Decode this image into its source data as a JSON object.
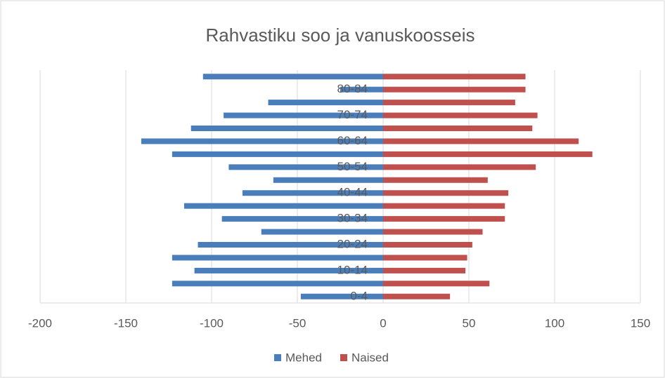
{
  "chart_data": {
    "type": "bar",
    "orientation": "horizontal",
    "title": "Rahvastiku soo ja vanuskoosseis",
    "categories": [
      "0-4",
      null,
      "10-14",
      null,
      "20-24",
      null,
      "30-34",
      null,
      "40-44",
      null,
      "50-54",
      null,
      "60-64",
      null,
      "70-74",
      null,
      "80-84",
      null
    ],
    "series": [
      {
        "name": "Mehed",
        "color": "#4a7ebb",
        "values": [
          -48,
          -123,
          -110,
          -123,
          -108,
          -71,
          -94,
          -116,
          -82,
          -64,
          -90,
          -123,
          -141,
          -112,
          -93,
          -67,
          -25,
          -105
        ]
      },
      {
        "name": "Naised",
        "color": "#c0504d",
        "values": [
          39,
          62,
          48,
          49,
          52,
          58,
          71,
          71,
          73,
          61,
          89,
          122,
          114,
          87,
          90,
          77,
          83,
          83
        ]
      }
    ],
    "xlim": [
      -200,
      150
    ],
    "xticks": [
      -200,
      -150,
      -100,
      -50,
      0,
      50,
      100,
      150
    ],
    "grid": true,
    "legend": "bottom"
  }
}
